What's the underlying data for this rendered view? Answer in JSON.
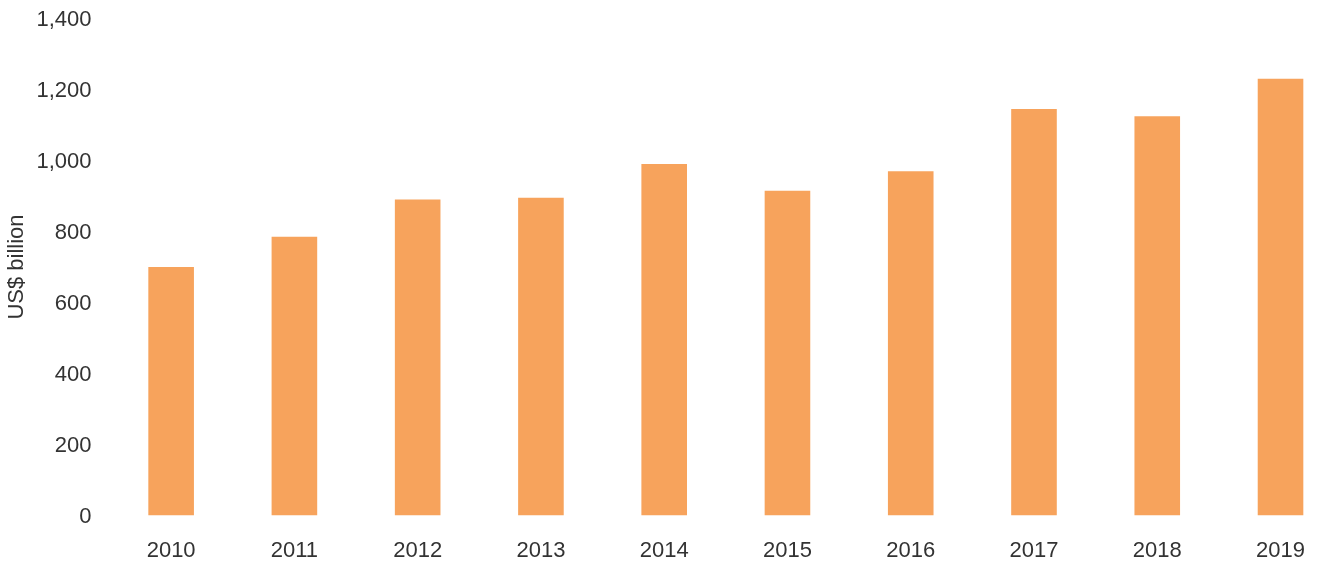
{
  "chart_data": {
    "type": "bar",
    "ylabel": "US$ billion",
    "categories": [
      "2010",
      "2011",
      "2012",
      "2013",
      "2014",
      "2015",
      "2016",
      "2017",
      "2018",
      "2019"
    ],
    "values": [
      700,
      785,
      890,
      895,
      990,
      915,
      970,
      1145,
      1125,
      1230
    ],
    "color": "#f7a35c",
    "ylim": [
      0,
      1400
    ],
    "yticks": [
      {
        "value": 0,
        "label": "0"
      },
      {
        "value": 200,
        "label": "200"
      },
      {
        "value": 400,
        "label": "400"
      },
      {
        "value": 600,
        "label": "600"
      },
      {
        "value": 800,
        "label": "800"
      },
      {
        "value": 1000,
        "label": "1,000"
      },
      {
        "value": 1200,
        "label": "1,200"
      },
      {
        "value": 1400,
        "label": "1,400"
      }
    ],
    "grid": false
  }
}
